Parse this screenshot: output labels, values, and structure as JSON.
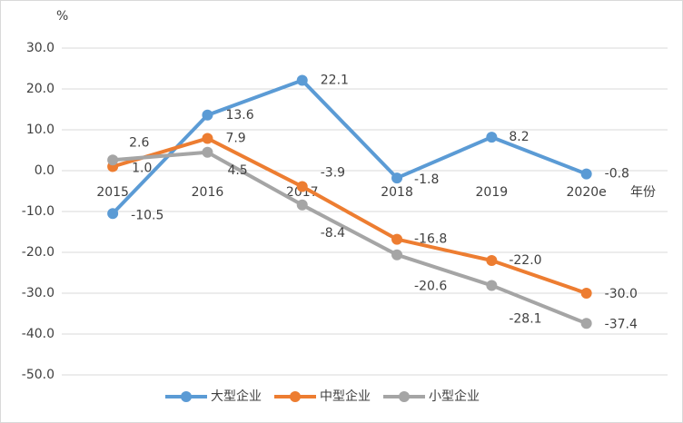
{
  "chart_data": {
    "type": "line",
    "y_unit": "%",
    "x_label": "年份",
    "categories": [
      "2015",
      "2016",
      "2017",
      "2018",
      "2019",
      "2020e"
    ],
    "series": [
      {
        "name": "大型企业",
        "color": "#5b9bd5",
        "values": [
          -10.5,
          13.6,
          22.1,
          -1.8,
          8.2,
          -0.8
        ]
      },
      {
        "name": "中型企业",
        "color": "#ed7d31",
        "values": [
          1.0,
          7.9,
          -3.9,
          -16.8,
          -22.0,
          -30.0
        ],
        "value_labels": [
          "1.0",
          "7.9",
          "-3.9",
          "-16.8",
          "-22.0",
          "-30.0"
        ]
      },
      {
        "name": "小型企业",
        "color": "#a5a5a5",
        "values": [
          2.6,
          4.5,
          -8.4,
          -20.6,
          -28.1,
          -37.4
        ]
      }
    ],
    "ylim": [
      -50,
      30
    ],
    "yticks": [
      {
        "value": -50,
        "label": "-50.0"
      },
      {
        "value": -40,
        "label": "-40.0"
      },
      {
        "value": -30,
        "label": "-30.0"
      },
      {
        "value": -20,
        "label": "-20.0"
      },
      {
        "value": -10,
        "label": "-10.0"
      },
      {
        "value": 0,
        "label": "0.0"
      },
      {
        "value": 10,
        "label": "10.0"
      },
      {
        "value": 20,
        "label": "20.0"
      },
      {
        "value": 30,
        "label": "30.0"
      }
    ],
    "grid": true,
    "legend": "bottom"
  }
}
